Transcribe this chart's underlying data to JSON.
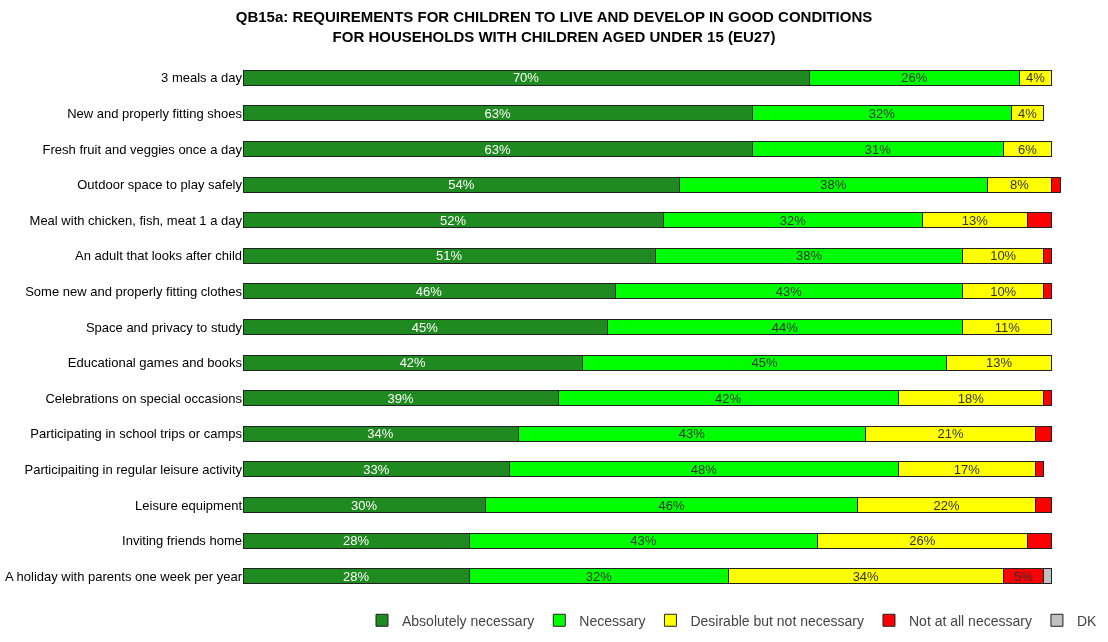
{
  "chart_data": {
    "type": "bar",
    "orientation": "horizontal",
    "stacked": true,
    "title": "QB15a: REQUIREMENTS FOR CHILDREN TO LIVE AND DEVELOP IN GOOD CONDITIONS\nFOR HOUSEHOLDS WITH CHILDREN AGED UNDER 15 (EU27)",
    "categories": [
      "3 meals a day",
      "New and properly fitting shoes",
      "Fresh fruit and veggies once a day",
      "Outdoor space to play safely",
      "Meal with chicken, fish, meat 1 a day",
      "An adult that looks after child",
      "Some new and properly fitting clothes",
      "Space and privacy to study",
      "Educational games and books",
      "Celebrations on special occasions",
      "Participating in school trips or camps",
      "Participaiting in regular leisure activity",
      "Leisure equipment",
      "Inviting friends home",
      "A holiday with parents one week per year"
    ],
    "series": [
      {
        "name": "Absolutely necessary",
        "color": "#1f8a1f",
        "values": [
          70,
          63,
          63,
          54,
          52,
          51,
          46,
          45,
          42,
          39,
          34,
          33,
          30,
          28,
          28
        ],
        "value_labels": [
          "70%",
          "63%",
          "63%",
          "54%",
          "52%",
          "51%",
          "46%",
          "45%",
          "42%",
          "39%",
          "34%",
          "33%",
          "30%",
          "28%",
          "28%"
        ]
      },
      {
        "name": "Necessary",
        "color": "#00ff00",
        "values": [
          26,
          32,
          31,
          38,
          32,
          38,
          43,
          44,
          45,
          42,
          43,
          48,
          46,
          43,
          32
        ],
        "value_labels": [
          "26%",
          "32%",
          "31%",
          "38%",
          "32%",
          "38%",
          "43%",
          "44%",
          "45%",
          "42%",
          "43%",
          "48%",
          "46%",
          "43%",
          "32%"
        ]
      },
      {
        "name": "Desirable but not necessary",
        "color": "#ffff00",
        "values": [
          4,
          4,
          6,
          8,
          13,
          10,
          10,
          11,
          13,
          18,
          21,
          17,
          22,
          26,
          34
        ],
        "value_labels": [
          "4%",
          "4%",
          "6%",
          "8%",
          "13%",
          "10%",
          "10%",
          "11%",
          "13%",
          "18%",
          "21%",
          "17%",
          "22%",
          "26%",
          "34%"
        ]
      },
      {
        "name": "Not at all necessary",
        "color": "#ff0000",
        "values": [
          null,
          null,
          null,
          1,
          3,
          1,
          1,
          null,
          null,
          1,
          2,
          1,
          2,
          3,
          5
        ],
        "value_labels": [
          null,
          null,
          null,
          null,
          null,
          null,
          null,
          null,
          null,
          null,
          null,
          null,
          null,
          null,
          "5%"
        ]
      },
      {
        "name": "DK",
        "color": "#c0c0c0",
        "values": [
          null,
          null,
          null,
          null,
          null,
          null,
          null,
          null,
          null,
          null,
          null,
          null,
          null,
          null,
          1
        ],
        "value_labels": [
          null,
          null,
          null,
          null,
          null,
          null,
          null,
          null,
          null,
          null,
          null,
          null,
          null,
          null,
          null
        ]
      }
    ],
    "legend": "bottom",
    "grid": false,
    "tick_labels": "y"
  }
}
